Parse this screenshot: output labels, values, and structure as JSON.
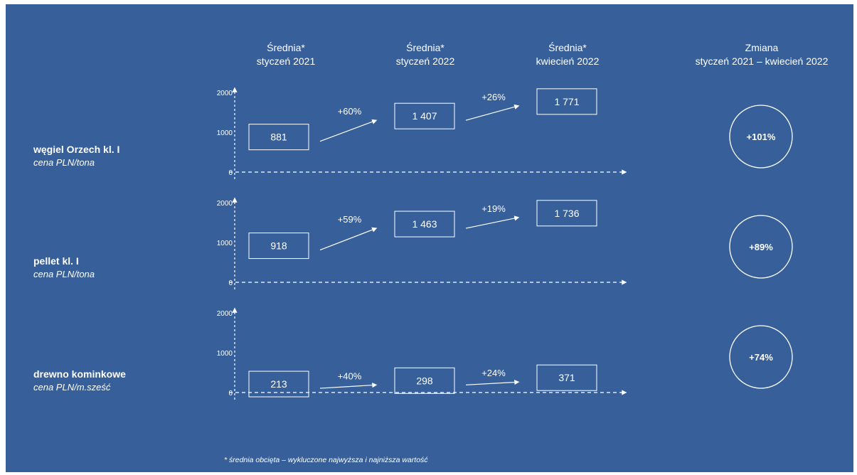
{
  "chart_data": {
    "type": "table",
    "columns": [
      {
        "line1": "Średnia*",
        "line2": "styczeń 2021"
      },
      {
        "line1": "Średnia*",
        "line2": "styczeń 2022"
      },
      {
        "line1": "Średnia*",
        "line2": "kwiecień 2022"
      }
    ],
    "change_header": {
      "line1": "Zmiana",
      "line2": "styczeń 2021 – kwiecień 2022"
    },
    "y_ticks": [
      "2000",
      "1000",
      "0"
    ],
    "ylim": [
      0,
      2000
    ],
    "rows": [
      {
        "name": "węgiel Orzech kl. I",
        "unit": "cena PLN/tona",
        "values": [
          881,
          1407,
          1771
        ],
        "value_labels": [
          "881",
          "1 407",
          "1 771"
        ],
        "growth": [
          "+60%",
          "+26%"
        ],
        "total_change": "+101%"
      },
      {
        "name": "pellet kl. I",
        "unit": "cena PLN/tona",
        "values": [
          918,
          1463,
          1736
        ],
        "value_labels": [
          "918",
          "1 463",
          "1 736"
        ],
        "growth": [
          "+59%",
          "+19%"
        ],
        "total_change": "+89%"
      },
      {
        "name": "drewno kominkowe",
        "unit": "cena PLN/m.sześć",
        "values": [
          213,
          298,
          371
        ],
        "value_labels": [
          "213",
          "298",
          "371"
        ],
        "growth": [
          "+40%",
          "+24%"
        ],
        "total_change": "+74%"
      }
    ],
    "footnote": "* średnia obcięta – wykluczone najwyższa i najniższa wartość"
  }
}
